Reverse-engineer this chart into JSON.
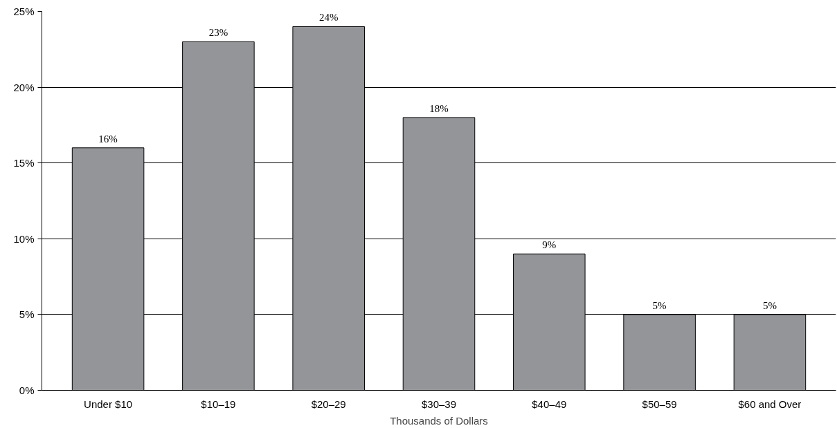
{
  "chart_data": {
    "type": "bar",
    "xlabel": "Thousands of Dollars",
    "categories": [
      "Under $10",
      "$10–19",
      "$20–29",
      "$30–39",
      "$40–49",
      "$50–59",
      "$60 and Over"
    ],
    "values": [
      16,
      23,
      24,
      18,
      9,
      5,
      5
    ],
    "value_labels": [
      "16%",
      "23%",
      "24%",
      "18%",
      "9%",
      "5%",
      "5%"
    ],
    "color": "#939598",
    "ylim": [
      0,
      25
    ],
    "yticks": [
      {
        "value": 0,
        "label": "0%"
      },
      {
        "value": 5,
        "label": "5%"
      },
      {
        "value": 10,
        "label": "10%"
      },
      {
        "value": 15,
        "label": "15%"
      },
      {
        "value": 20,
        "label": "20%"
      },
      {
        "value": 25,
        "label": "25%"
      }
    ],
    "grid": "y"
  }
}
